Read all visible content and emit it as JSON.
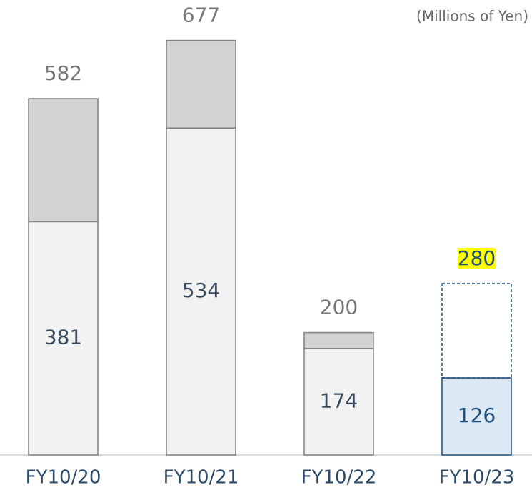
{
  "chart_data": {
    "type": "stacked_bar",
    "unit_label": "(Millions of Yen)",
    "categories": [
      "FY10/20",
      "FY10/21",
      "FY10/22",
      "FY10/23"
    ],
    "series": [
      {
        "color": "#f2f2f2",
        "values": [
          381,
          534,
          174,
          126
        ]
      },
      {
        "color": "#d3d3d3",
        "values": [
          201,
          143,
          26,
          154
        ]
      }
    ],
    "totals": [
      582,
      677,
      200,
      280
    ],
    "highlight": [
      false,
      false,
      false,
      true
    ],
    "highlight_color": "#dde8f5",
    "highlight_stroke": "#1f4e79",
    "highlight_label_background": "#ffff00",
    "ylim": [
      0,
      743
    ]
  }
}
